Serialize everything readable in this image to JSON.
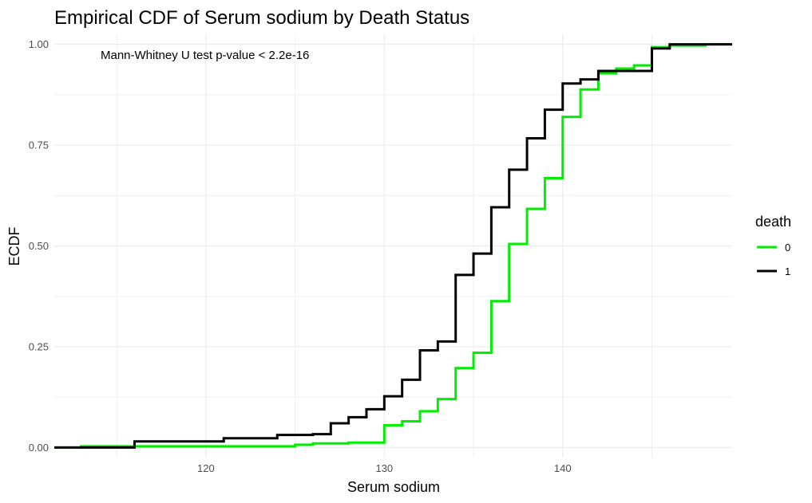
{
  "chart_data": {
    "type": "line",
    "step": true,
    "title": "Empirical CDF of Serum sodium by Death Status",
    "xlabel": "Serum sodium",
    "ylabel": "ECDF",
    "xlim": [
      111.5,
      149.5
    ],
    "ylim": [
      -0.025,
      1.025
    ],
    "x_ticks": [
      120,
      130,
      140
    ],
    "x_tick_labels": [
      "120",
      "130",
      "140"
    ],
    "y_ticks": [
      0,
      0.25,
      0.5,
      0.75,
      1
    ],
    "y_tick_labels": [
      "0.00",
      "0.25",
      "0.50",
      "0.75",
      "1.00"
    ],
    "grid": true,
    "legend": {
      "title": "death",
      "position": "right"
    },
    "annotation": "Mann-Whitney U test p-value < 2.2e-16",
    "series": [
      {
        "name": "0",
        "color": "#00ee00",
        "x": [
          113,
          125,
          126,
          128,
          130,
          131,
          132,
          133,
          134,
          135,
          136,
          137,
          138,
          139,
          140,
          141,
          142,
          143,
          144,
          145,
          146,
          148
        ],
        "y": [
          0.003,
          0.007,
          0.01,
          0.012,
          0.055,
          0.065,
          0.09,
          0.12,
          0.197,
          0.235,
          0.363,
          0.505,
          0.592,
          0.668,
          0.82,
          0.888,
          0.928,
          0.94,
          0.948,
          0.993,
          0.997,
          1.0
        ]
      },
      {
        "name": "1",
        "color": "#000000",
        "x": [
          116,
          121,
          124,
          126,
          127,
          128,
          129,
          130,
          131,
          132,
          133,
          134,
          135,
          136,
          137,
          138,
          139,
          140,
          141,
          142,
          145,
          146
        ],
        "y": [
          0.015,
          0.023,
          0.031,
          0.033,
          0.06,
          0.075,
          0.095,
          0.127,
          0.168,
          0.241,
          0.263,
          0.428,
          0.481,
          0.596,
          0.689,
          0.767,
          0.838,
          0.903,
          0.913,
          0.934,
          0.99,
          1.0
        ]
      }
    ]
  }
}
